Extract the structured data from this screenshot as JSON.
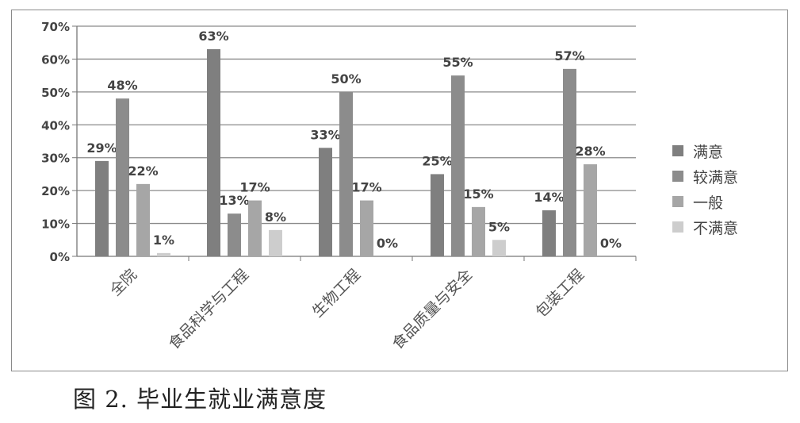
{
  "caption": "图 2. 毕业生就业满意度",
  "chart_data": {
    "type": "bar",
    "categories": [
      "全院",
      "食品科学与工程",
      "生物工程",
      "食品质量与安全",
      "包装工程"
    ],
    "series": [
      {
        "name": "满意",
        "color": "#7f7f7f",
        "values": [
          29,
          63,
          33,
          25,
          14
        ]
      },
      {
        "name": "较满意",
        "color": "#8c8c8c",
        "values": [
          48,
          13,
          50,
          55,
          57
        ]
      },
      {
        "name": "一般",
        "color": "#a6a6a6",
        "values": [
          22,
          17,
          17,
          15,
          28
        ]
      },
      {
        "name": "不满意",
        "color": "#cdcdcd",
        "values": [
          1,
          8,
          0,
          5,
          0
        ]
      }
    ],
    "data_labels": [
      [
        "29%",
        "48%",
        "22%",
        "1%"
      ],
      [
        "63%",
        "13%",
        "17%",
        "8%"
      ],
      [
        "33%",
        "50%",
        "17%",
        "0%"
      ],
      [
        "25%",
        "55%",
        "15%",
        "5%"
      ],
      [
        "14%",
        "57%",
        "28%",
        "0%"
      ]
    ],
    "y_ticks": [
      "0%",
      "10%",
      "20%",
      "30%",
      "40%",
      "50%",
      "60%",
      "70%"
    ],
    "ylim": [
      0,
      70
    ],
    "grid": true,
    "legend_position": "right"
  }
}
